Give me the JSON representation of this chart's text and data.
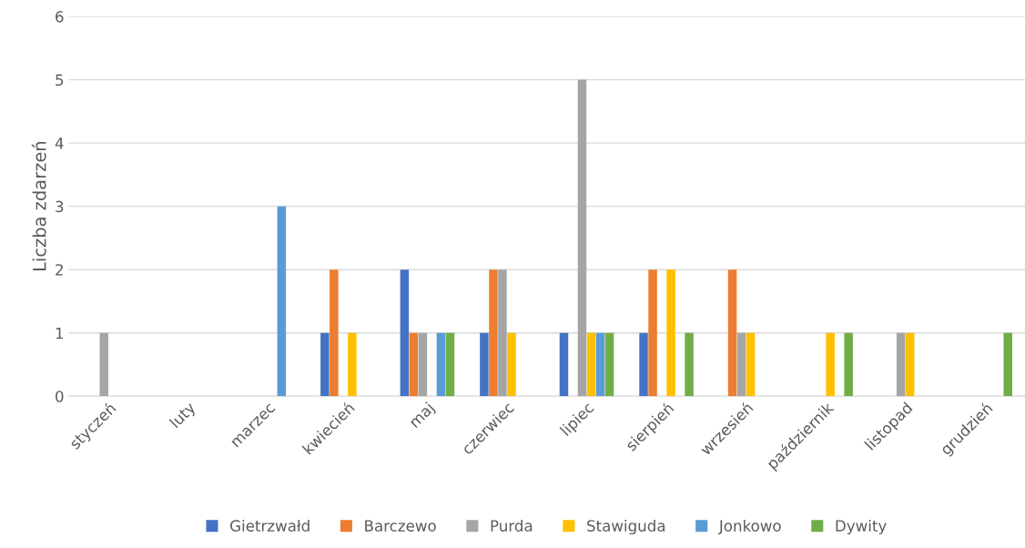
{
  "chart_data": {
    "type": "bar",
    "ylabel": "Liczba zdarzeń",
    "categories": [
      "styczeń",
      "luty",
      "marzec",
      "kwiecień",
      "maj",
      "czerwiec",
      "lipiec",
      "sierpień",
      "wrzesień",
      "październik",
      "listopad",
      "grudzień"
    ],
    "series": [
      {
        "name": "Gietrzwałd",
        "color": "#4472c4",
        "values": [
          0,
          0,
          0,
          1,
          2,
          1,
          1,
          1,
          0,
          0,
          0,
          0
        ]
      },
      {
        "name": "Barczewo",
        "color": "#ed7d31",
        "values": [
          0,
          0,
          0,
          2,
          1,
          2,
          0,
          2,
          2,
          0,
          0,
          0
        ]
      },
      {
        "name": "Purda",
        "color": "#a5a5a5",
        "values": [
          1,
          0,
          0,
          0,
          1,
          2,
          5,
          0,
          1,
          0,
          1,
          0
        ]
      },
      {
        "name": "Stawiguda",
        "color": "#ffc000",
        "values": [
          0,
          0,
          0,
          1,
          0,
          1,
          1,
          2,
          1,
          1,
          1,
          0
        ]
      },
      {
        "name": "Jonkowo",
        "color": "#5b9bd5",
        "values": [
          0,
          0,
          3,
          0,
          1,
          0,
          1,
          0,
          0,
          0,
          0,
          0
        ]
      },
      {
        "name": "Dywity",
        "color": "#70ad47",
        "values": [
          0,
          0,
          0,
          0,
          1,
          0,
          1,
          1,
          0,
          1,
          0,
          1
        ]
      }
    ],
    "ylim": [
      0,
      6
    ],
    "yticks": [
      0,
      1,
      2,
      3,
      4,
      5,
      6
    ],
    "grid": "y",
    "legend": "bottom"
  }
}
